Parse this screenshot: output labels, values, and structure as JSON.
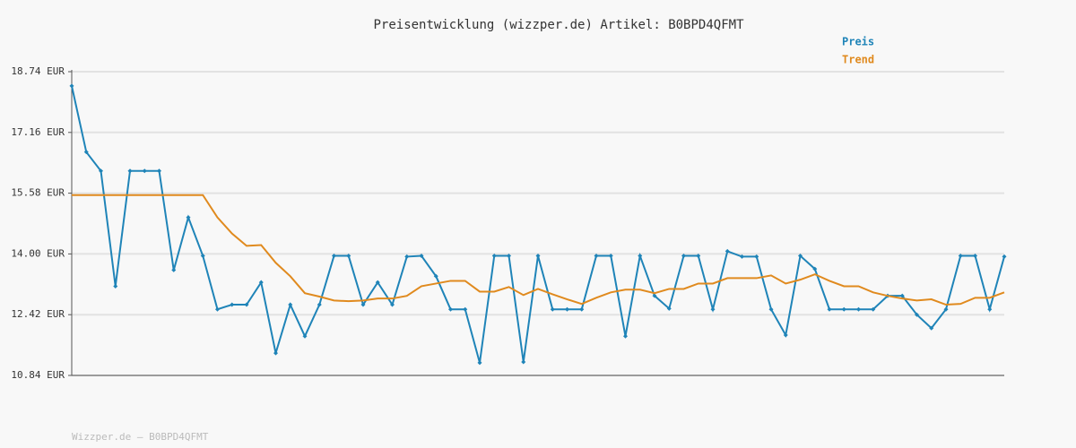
{
  "chart_data": {
    "type": "line",
    "title": "Preisentwicklung (wizzper.de) Artikel: B0BPD4QFMT",
    "footer": "Wizzper.de – B0BPD4QFMT",
    "categories": [
      null,
      null,
      null,
      null,
      null,
      null,
      null,
      null,
      null,
      null,
      null,
      null,
      null,
      null,
      null,
      null,
      null,
      null,
      null,
      null,
      null,
      null,
      null,
      null,
      null,
      null,
      null,
      null,
      null,
      null,
      null,
      null,
      null,
      null,
      null,
      null,
      null,
      null,
      null,
      null,
      null,
      null,
      null,
      null,
      null,
      null,
      null,
      null,
      null,
      null,
      null,
      null,
      null,
      null,
      null,
      null,
      null,
      null,
      null,
      null,
      null,
      null,
      null,
      null,
      null
    ],
    "series": [
      {
        "name": "Preis",
        "color": "#1f84b8",
        "markers": true,
        "values": [
          18.37,
          16.65,
          16.16,
          13.16,
          16.16,
          16.16,
          16.16,
          13.58,
          14.95,
          13.95,
          12.56,
          12.68,
          12.68,
          13.26,
          11.42,
          12.68,
          11.86,
          12.68,
          13.95,
          13.95,
          12.68,
          13.26,
          12.68,
          13.93,
          13.95,
          13.42,
          12.56,
          12.56,
          11.17,
          13.95,
          13.95,
          11.19,
          13.95,
          12.56,
          12.56,
          12.56,
          13.95,
          13.95,
          11.86,
          13.95,
          12.91,
          12.58,
          13.95,
          13.95,
          12.56,
          14.07,
          13.93,
          13.93,
          12.56,
          11.89,
          13.95,
          13.61,
          12.56,
          12.56,
          12.56,
          12.56,
          12.91,
          12.91,
          12.42,
          12.07,
          12.56,
          13.95,
          13.95,
          12.56,
          13.93
        ]
      },
      {
        "name": "Trend",
        "color": "#e08a1e",
        "markers": false,
        "values": [
          15.53,
          15.53,
          15.53,
          15.53,
          15.53,
          15.53,
          15.53,
          15.53,
          15.53,
          15.53,
          14.95,
          14.53,
          14.21,
          14.23,
          13.77,
          13.42,
          12.98,
          12.89,
          12.79,
          12.77,
          12.79,
          12.84,
          12.84,
          12.91,
          13.16,
          13.23,
          13.3,
          13.3,
          13.02,
          13.02,
          13.14,
          12.93,
          13.09,
          12.95,
          12.82,
          12.7,
          12.86,
          13.0,
          13.07,
          13.07,
          12.98,
          13.09,
          13.09,
          13.23,
          13.23,
          13.37,
          13.37,
          13.37,
          13.44,
          13.23,
          13.33,
          13.47,
          13.3,
          13.16,
          13.16,
          13.0,
          12.91,
          12.84,
          12.79,
          12.82,
          12.68,
          12.7,
          12.86,
          12.86,
          13.0
        ]
      }
    ],
    "ylim": [
      10.84,
      18.74
    ],
    "yticks": [
      {
        "value": 10.84,
        "label": "10.84 EUR"
      },
      {
        "value": 12.42,
        "label": "12.42 EUR"
      },
      {
        "value": 14.0,
        "label": "14.00 EUR"
      },
      {
        "value": 15.58,
        "label": "15.58 EUR"
      },
      {
        "value": 17.16,
        "label": "17.16 EUR"
      },
      {
        "value": 18.74,
        "label": "18.74 EUR"
      }
    ],
    "grid": true,
    "legend": "top-right"
  }
}
